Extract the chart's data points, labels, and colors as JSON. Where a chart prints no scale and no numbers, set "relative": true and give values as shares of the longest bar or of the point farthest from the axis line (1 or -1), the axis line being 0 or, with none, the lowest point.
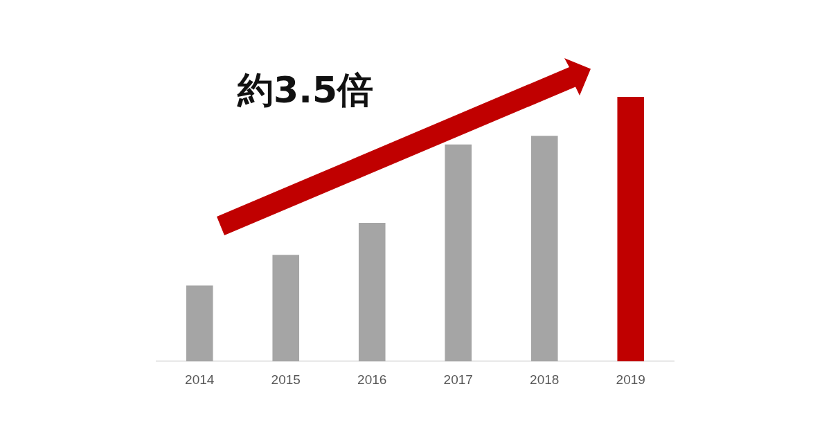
{
  "chart_data": {
    "type": "bar",
    "categories": [
      "2014",
      "2015",
      "2016",
      "2017",
      "2018",
      "2019"
    ],
    "values": [
      0.287,
      0.403,
      0.524,
      0.82,
      0.853,
      1
    ],
    "colors": [
      "#a5a5a5",
      "#a5a5a5",
      "#a5a5a5",
      "#a5a5a5",
      "#a5a5a5",
      "#c00000"
    ],
    "relative": true,
    "annotations": [
      "約3.5倍"
    ]
  }
}
